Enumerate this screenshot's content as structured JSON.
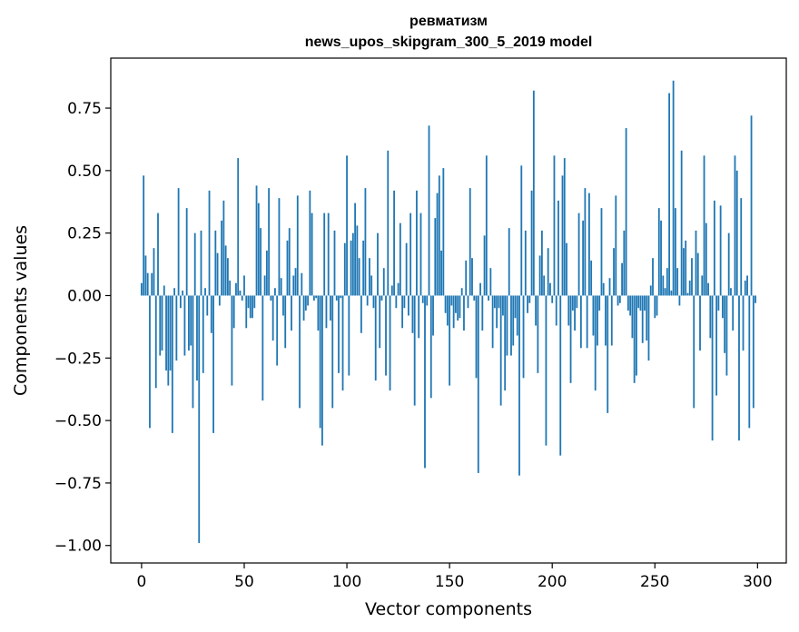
{
  "chart_data": {
    "type": "bar",
    "title_line1": "ревматизм",
    "title_line2": "news_upos_skipgram_300_5_2019 model",
    "xlabel": "Vector components",
    "ylabel": "Components values",
    "xlim": [
      -15,
      314
    ],
    "ylim": [
      -1.07,
      0.95
    ],
    "xticks": [
      0,
      50,
      100,
      150,
      200,
      250,
      300
    ],
    "xtick_labels": [
      "0",
      "50",
      "100",
      "150",
      "200",
      "250",
      "300"
    ],
    "yticks": [
      -1.0,
      -0.75,
      -0.5,
      -0.25,
      0.0,
      0.25,
      0.5,
      0.75
    ],
    "ytick_labels": [
      "−1.00",
      "−0.75",
      "−0.50",
      "−0.25",
      "0.00",
      "0.25",
      "0.50",
      "0.75"
    ],
    "bar_color": "#1f77b4",
    "grid": false,
    "values": [
      0.05,
      0.48,
      0.16,
      0.09,
      -0.53,
      0.09,
      0.19,
      -0.37,
      0.33,
      -0.24,
      -0.22,
      0.04,
      -0.3,
      -0.36,
      -0.3,
      -0.55,
      0.03,
      -0.26,
      0.43,
      -0.05,
      0.02,
      -0.24,
      0.35,
      -0.22,
      -0.2,
      -0.45,
      0.25,
      -0.34,
      -0.99,
      0.26,
      -0.31,
      0.03,
      -0.08,
      0.42,
      -0.15,
      -0.55,
      0.26,
      0.17,
      -0.04,
      0.3,
      0.38,
      0.2,
      0.15,
      0.06,
      -0.36,
      -0.13,
      0.05,
      0.55,
      0.02,
      -0.02,
      0.08,
      -0.13,
      -0.05,
      -0.09,
      -0.09,
      -0.05,
      0.44,
      0.37,
      0.27,
      -0.42,
      0.08,
      0.18,
      0.43,
      -0.02,
      -0.18,
      0.03,
      -0.28,
      0.39,
      0.07,
      -0.08,
      -0.21,
      0.22,
      0.27,
      -0.14,
      0.08,
      0.11,
      0.4,
      -0.45,
      0.09,
      -0.1,
      -0.06,
      -0.04,
      0.42,
      0.33,
      -0.02,
      -0.01,
      -0.14,
      -0.53,
      -0.6,
      0.33,
      -0.13,
      0.33,
      -0.1,
      -0.45,
      0.26,
      -0.02,
      -0.31,
      -0.01,
      -0.38,
      0.21,
      0.56,
      -0.32,
      0.22,
      0.25,
      0.37,
      0.28,
      0.15,
      -0.15,
      0.22,
      0.43,
      -0.04,
      0.15,
      0.08,
      -0.05,
      -0.34,
      0.25,
      -0.21,
      -0.02,
      0.11,
      -0.32,
      0.58,
      -0.38,
      0.04,
      0.42,
      -0.05,
      0.05,
      0.29,
      -0.13,
      -0.05,
      0.21,
      -0.08,
      0.33,
      -0.15,
      -0.44,
      0.42,
      -0.17,
      0.33,
      -0.03,
      -0.69,
      -0.04,
      0.68,
      -0.41,
      -0.16,
      0.31,
      0.41,
      0.48,
      0.18,
      0.51,
      -0.07,
      -0.12,
      -0.36,
      -0.04,
      -0.13,
      -0.07,
      -0.1,
      -0.09,
      0.03,
      -0.14,
      0.14,
      -0.05,
      0.43,
      0.15,
      -0.02,
      -0.33,
      -0.71,
      0.05,
      -0.14,
      0.24,
      0.56,
      -0.02,
      0.11,
      -0.21,
      -0.05,
      -0.13,
      -0.05,
      -0.44,
      -0.08,
      -0.38,
      -0.24,
      0.27,
      -0.24,
      -0.2,
      -0.09,
      -0.16,
      -0.72,
      0.52,
      -0.33,
      0.26,
      -0.07,
      -0.03,
      0.42,
      0.82,
      -0.12,
      -0.31,
      0.16,
      0.26,
      0.08,
      -0.6,
      0.19,
      0.05,
      -0.03,
      0.56,
      -0.12,
      0.38,
      -0.64,
      0.48,
      0.55,
      0.21,
      -0.12,
      -0.35,
      -0.06,
      -0.14,
      -0.05,
      0.33,
      -0.21,
      0.3,
      0.43,
      -0.21,
      0.41,
      0.14,
      -0.16,
      -0.38,
      -0.2,
      -0.06,
      0.35,
      0.05,
      -0.2,
      -0.47,
      0.07,
      -0.2,
      0.19,
      0.4,
      -0.04,
      -0.03,
      0.13,
      0.26,
      0.67,
      -0.06,
      -0.08,
      -0.17,
      -0.35,
      -0.32,
      -0.05,
      -0.06,
      -0.19,
      -0.06,
      -0.18,
      -0.26,
      0.04,
      0.15,
      -0.09,
      -0.08,
      0.35,
      0.3,
      0.08,
      0.03,
      0.11,
      0.81,
      0.02,
      0.86,
      0.35,
      0.11,
      -0.04,
      0.58,
      0.19,
      0.22,
      0.01,
      0.06,
      0.15,
      -0.45,
      0.26,
      0.17,
      -0.22,
      0.08,
      0.56,
      0.29,
      0.05,
      -0.17,
      -0.58,
      0.38,
      -0.4,
      -0.06,
      0.36,
      -0.09,
      -0.23,
      -0.32,
      0.25,
      0.03,
      -0.14,
      0.56,
      0.5,
      -0.58,
      0.39,
      -0.22,
      0.06,
      0.08,
      -0.53,
      0.72,
      -0.45,
      -0.03
    ]
  }
}
